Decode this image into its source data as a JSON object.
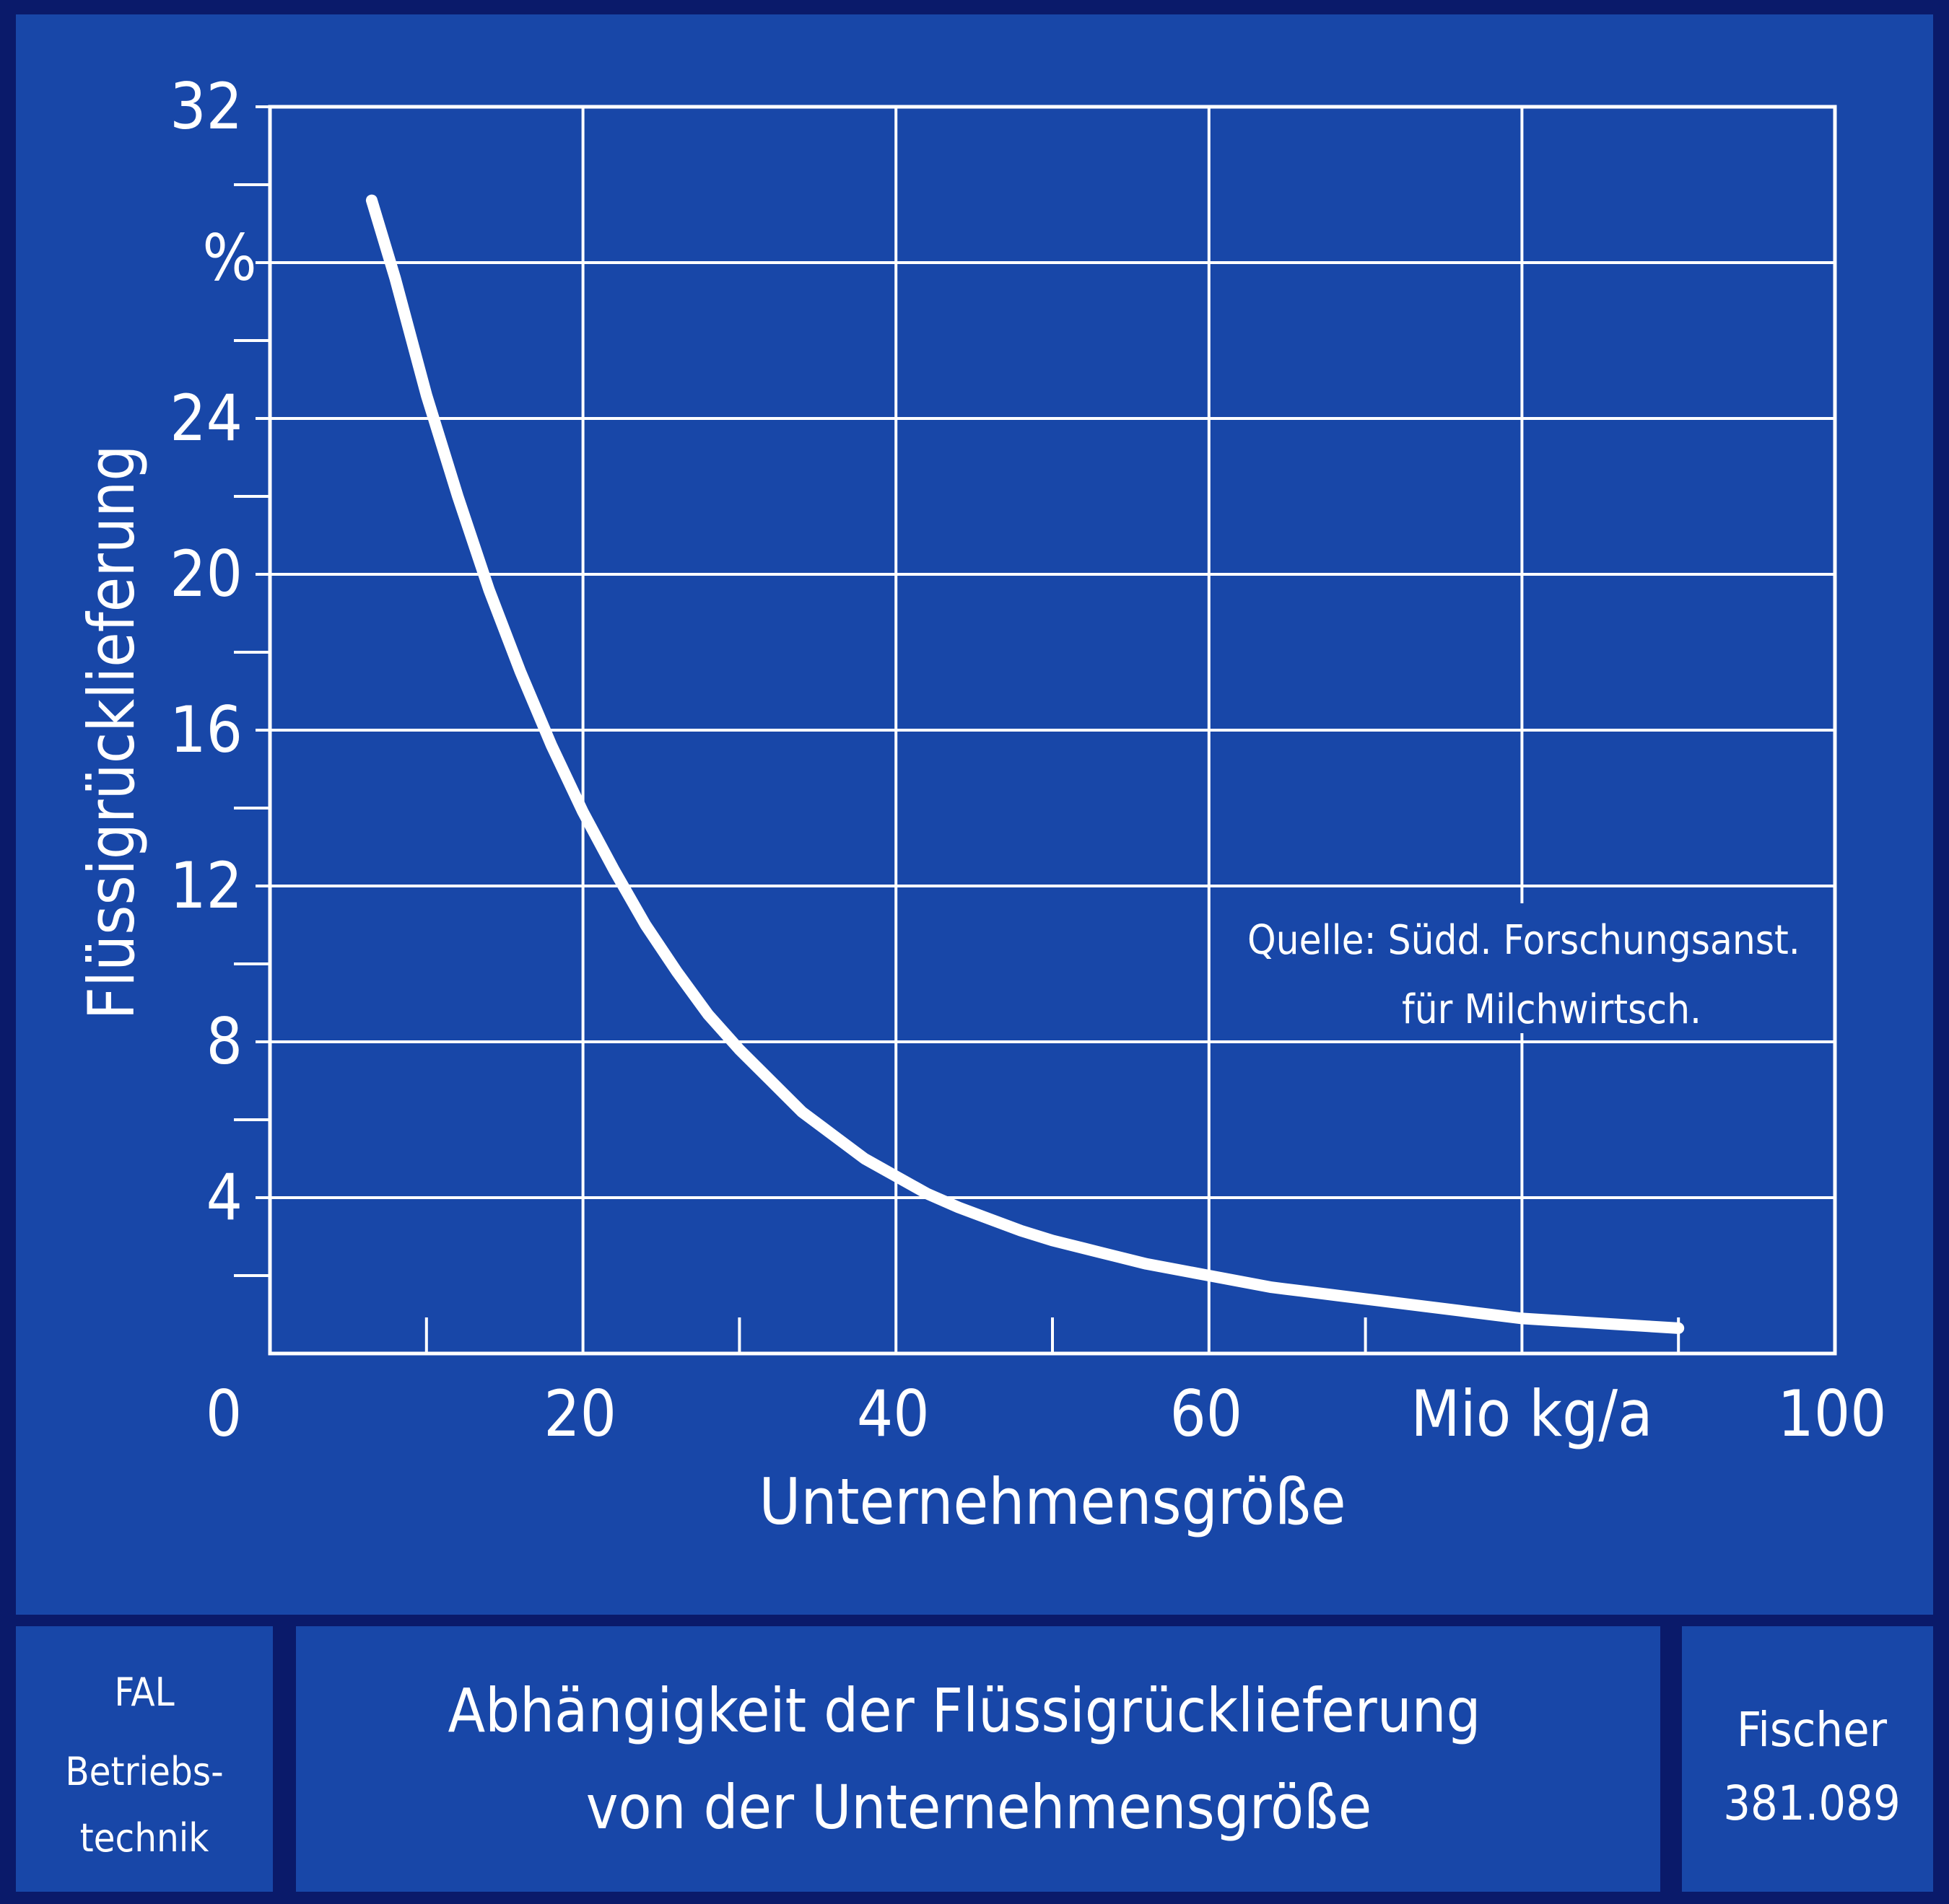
{
  "colors": {
    "background": "#1847a8",
    "frame": "#0a1a6a",
    "lines": "#ffffff"
  },
  "chart_data": {
    "type": "line",
    "title": "",
    "xlabel": "Unternehmensgröße",
    "ylabel": "Flüssigrücklieferung",
    "x_unit_label": "Mio kg/a",
    "y_unit_label": "%",
    "xlim": [
      0,
      100
    ],
    "ylim": [
      0,
      32
    ],
    "x_ticks": [
      0,
      20,
      40,
      60,
      100
    ],
    "x_tick_labels": [
      "0",
      "20",
      "40",
      "60",
      "100"
    ],
    "y_ticks": [
      4,
      8,
      12,
      16,
      20,
      24,
      32
    ],
    "y_tick_labels": [
      "4",
      "8",
      "12",
      "16",
      "20",
      "24",
      "32"
    ],
    "grid": true,
    "x_grid_step": 20,
    "y_grid_step": 4,
    "minor_tick_step_x": 10,
    "minor_tick_step_y": 2,
    "series": [
      {
        "name": "",
        "x": [
          6.5,
          8,
          10,
          12,
          14,
          16,
          18,
          20,
          22,
          24,
          26,
          28,
          30,
          32,
          34,
          36,
          38,
          40,
          42,
          44,
          46,
          48,
          50,
          52,
          54,
          56,
          58,
          60,
          62,
          64,
          66,
          68,
          70,
          72,
          74,
          76,
          78,
          80,
          82,
          84,
          86,
          88,
          90
        ],
        "y": [
          29.6,
          27.6,
          24.6,
          22.0,
          19.6,
          17.5,
          15.6,
          13.9,
          12.4,
          11.0,
          9.8,
          8.7,
          7.8,
          7.0,
          6.2,
          5.6,
          5.0,
          4.55,
          4.1,
          3.75,
          3.45,
          3.15,
          2.9,
          2.7,
          2.5,
          2.3,
          2.15,
          2.0,
          1.85,
          1.7,
          1.6,
          1.5,
          1.4,
          1.3,
          1.2,
          1.1,
          1.0,
          0.9,
          0.85,
          0.8,
          0.75,
          0.7,
          0.65
        ]
      }
    ],
    "annotations": [
      "Quelle: Südd. Forschungsanst.",
      "für Milchwirtsch."
    ]
  },
  "footer": {
    "left_line1": "FAL",
    "left_line2": "Betriebs-",
    "left_line3": "technik",
    "title_line1": "Abhängigkeit der Flüssigrücklieferung",
    "title_line2": "von der Unternehmensgröße",
    "right_line1": "Fischer",
    "right_line2": "381.089"
  }
}
